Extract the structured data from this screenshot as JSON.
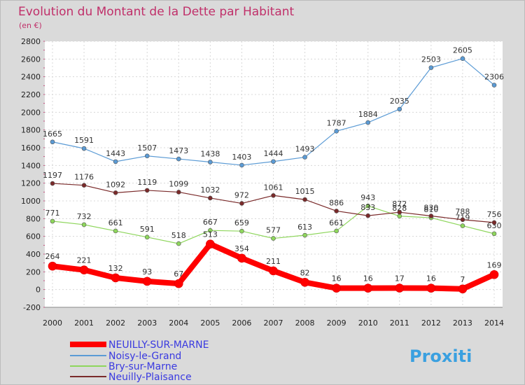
{
  "chart_data": {
    "type": "line",
    "title": "Evolution du Montant de la Dette par Habitant",
    "unit_label": "(en €)",
    "xlabel": "",
    "ylabel": "",
    "x": [
      "2000",
      "2001",
      "2002",
      "2003",
      "2004",
      "2005",
      "2006",
      "2007",
      "2008",
      "2009",
      "2010",
      "2011",
      "2012",
      "2013",
      "2014"
    ],
    "ylim": [
      -200,
      2800
    ],
    "yticks": [
      "-200",
      "0",
      "200",
      "400",
      "600",
      "800",
      "1000",
      "1200",
      "1400",
      "1600",
      "1800",
      "2000",
      "2200",
      "2400",
      "2600",
      "2800"
    ],
    "grid": true,
    "legend_position": "bottom-left",
    "series": [
      {
        "name": "NEUILLY-SUR-MARNE",
        "color": "#ff0000",
        "labels": [
          "264",
          "221",
          "132",
          "93",
          "67",
          "513",
          "354",
          "211",
          "82",
          "16",
          "16",
          "17",
          "16",
          "7",
          "169"
        ],
        "values": [
          264,
          221,
          132,
          93,
          67,
          513,
          354,
          211,
          82,
          16,
          16,
          17,
          16,
          7,
          169
        ]
      },
      {
        "name": "Noisy-le-Grand",
        "color": "#5b9bd5",
        "labels": [
          "1665",
          "1591",
          "1443",
          "1507",
          "1473",
          "1438",
          "1403",
          "1444",
          "1493",
          "1787",
          "1884",
          "2035",
          "2503",
          "2605",
          "2306"
        ],
        "values": [
          1665,
          1591,
          1443,
          1507,
          1473,
          1438,
          1403,
          1444,
          1493,
          1787,
          1884,
          2035,
          2503,
          2605,
          2306
        ]
      },
      {
        "name": "Bry-sur-Marne",
        "color": "#8ed65c",
        "labels": [
          "771",
          "732",
          "661",
          "591",
          "518",
          "667",
          "659",
          "577",
          "613",
          "661",
          "943",
          "828",
          "810",
          "719",
          "630"
        ],
        "values": [
          771,
          732,
          661,
          591,
          518,
          667,
          659,
          577,
          613,
          661,
          943,
          828,
          810,
          719,
          630
        ]
      },
      {
        "name": "Neuilly-Plaisance",
        "color": "#7a2a2a",
        "labels": [
          "1197",
          "1176",
          "1092",
          "1119",
          "1099",
          "1032",
          "972",
          "1061",
          "1015",
          "886",
          "833",
          "872",
          "830",
          "788",
          "756"
        ],
        "values": [
          1197,
          1176,
          1092,
          1119,
          1099,
          1032,
          972,
          1061,
          1015,
          886,
          833,
          872,
          830,
          788,
          756
        ]
      }
    ]
  },
  "logo": {
    "text": "Proxiti"
  }
}
